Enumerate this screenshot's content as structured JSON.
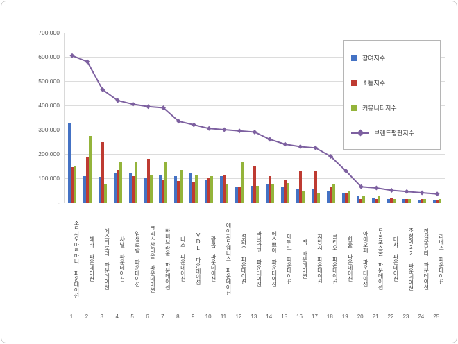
{
  "page": {
    "background": "#ffffff",
    "frame_border_color": "#c6c6c6"
  },
  "chart_data": {
    "type": "bar",
    "subtype": "grouped-bars-with-line",
    "title": "",
    "xlabel": "",
    "ylabel": "",
    "ylim": [
      0,
      700000
    ],
    "ytick_step": 100000,
    "ytick_labels": [
      "-",
      "100,000",
      "200,000",
      "300,000",
      "400,000",
      "500,000",
      "600,000",
      "700,000"
    ],
    "grid": true,
    "legend_position": "top-right",
    "categories": [
      "조르지오아르마니 파운데이션",
      "헤라 파운데이션",
      "에스티로더 파운데이션",
      "샤넬 파운데이션",
      "입생로랑 파운데이션",
      "크리스찬디올 파운데이션",
      "바비브라운 파운데이션",
      "나스 파운데이션",
      "VDL 파운데이션",
      "랑콤 파운데이션",
      "에이지투웨니스 파운데이션",
      "설화수 파운데이션",
      "바닐라코 파운데이션",
      "에스쁘아 파운데이션",
      "에뛰드 파운데이션",
      "맥 파운데이션",
      "지방시 파운데이션",
      "클리오 파운데이션",
      "한율 파운데이션",
      "아이오페 파운데이션",
      "투쿨포스쿨 파운데이션",
      "미샤 파운데이션",
      "조성아22 파운데이션",
      "정샘물뷰티 파운데이션",
      "라네즈 파운데이션"
    ],
    "rank_labels": [
      "1",
      "2",
      "3",
      "4",
      "5",
      "6",
      "7",
      "8",
      "9",
      "10",
      "11",
      "12",
      "13",
      "14",
      "15",
      "16",
      "17",
      "18",
      "19",
      "20",
      "21",
      "22",
      "23",
      "24",
      "25"
    ],
    "series": [
      {
        "name": "참여지수",
        "key": "participation-index",
        "type": "bar",
        "color": "#4472C4",
        "values": [
          325000,
          110000,
          105000,
          120000,
          120000,
          100000,
          115000,
          110000,
          120000,
          95000,
          110000,
          65000,
          70000,
          75000,
          65000,
          55000,
          55000,
          50000,
          40000,
          25000,
          20000,
          15000,
          15000,
          12000,
          12000
        ]
      },
      {
        "name": "소통지수",
        "key": "communication-index",
        "type": "bar",
        "color": "#BE3B32",
        "values": [
          145000,
          190000,
          250000,
          135000,
          110000,
          180000,
          95000,
          90000,
          85000,
          100000,
          115000,
          65000,
          150000,
          110000,
          95000,
          130000,
          130000,
          65000,
          40000,
          15000,
          15000,
          20000,
          15000,
          15000,
          10000
        ]
      },
      {
        "name": "커뮤니티지수",
        "key": "community-index",
        "type": "bar",
        "color": "#94B43B",
        "values": [
          150000,
          275000,
          75000,
          165000,
          170000,
          115000,
          170000,
          135000,
          115000,
          110000,
          75000,
          165000,
          70000,
          75000,
          80000,
          45000,
          40000,
          75000,
          50000,
          25000,
          25000,
          15000,
          15000,
          13000,
          13000
        ]
      },
      {
        "name": "브랜드평판지수",
        "key": "brand-reputation-index",
        "type": "line",
        "color": "#7D60A0",
        "values": [
          605000,
          580000,
          465000,
          420000,
          405000,
          395000,
          390000,
          335000,
          320000,
          305000,
          300000,
          295000,
          290000,
          260000,
          240000,
          230000,
          225000,
          190000,
          130000,
          65000,
          60000,
          50000,
          45000,
          40000,
          35000
        ]
      }
    ]
  }
}
